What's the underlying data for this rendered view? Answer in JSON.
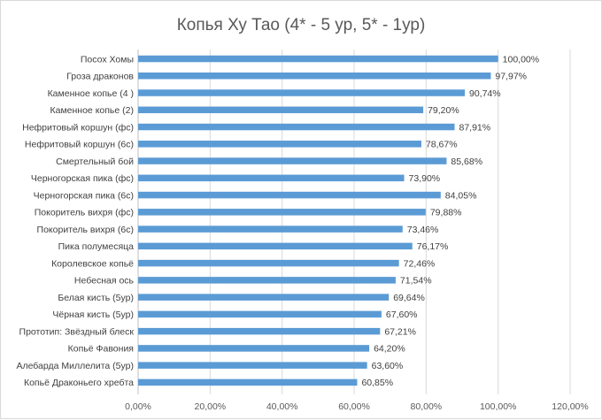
{
  "chart_data": {
    "type": "bar",
    "orientation": "horizontal",
    "title": "Копья Ху Тао (4* - 5 ур, 5* - 1ур)",
    "categories": [
      "Посох Хомы",
      "Гроза драконов",
      "Каменное копье (4 )",
      "Каменное копье (2)",
      "Нефритовый коршун (фс)",
      "Нефритовый коршун (6с)",
      "Смертельный бой",
      "Черногорская пика (фс)",
      "Черногорская пика (6с)",
      "Покоритель вихря (фс)",
      "Покоритель вихря (6с)",
      "Пика полумесяца",
      "Королевское копьё",
      "Небесная ось",
      "Белая кисть (5ур)",
      "Чёрная кисть (5ур)",
      "Прототип: Звёздный блеск",
      "Копьё Фавония",
      "Алебарда Миллелита (5ур)",
      "Копьё Драконьего хребта"
    ],
    "values": [
      100.0,
      97.97,
      90.74,
      79.2,
      87.91,
      78.67,
      85.68,
      73.9,
      84.05,
      79.88,
      73.46,
      76.17,
      72.46,
      71.54,
      69.64,
      67.6,
      67.21,
      64.2,
      63.6,
      60.85
    ],
    "value_labels": [
      "100,00%",
      "97,97%",
      "90,74%",
      "79,20%",
      "87,91%",
      "78,67%",
      "85,68%",
      "73,90%",
      "84,05%",
      "79,88%",
      "73,46%",
      "76,17%",
      "72,46%",
      "71,54%",
      "69,64%",
      "67,60%",
      "67,21%",
      "64,20%",
      "63,60%",
      "60,85%"
    ],
    "xlim": [
      0,
      120
    ],
    "xticks": [
      0,
      20,
      40,
      60,
      80,
      100,
      120
    ],
    "xtick_labels": [
      "0,00%",
      "20,00%",
      "40,00%",
      "60,00%",
      "80,00%",
      "100,00%",
      "120,00%"
    ],
    "grid": true,
    "bar_color": "#5b9bd5",
    "legend": "none"
  }
}
